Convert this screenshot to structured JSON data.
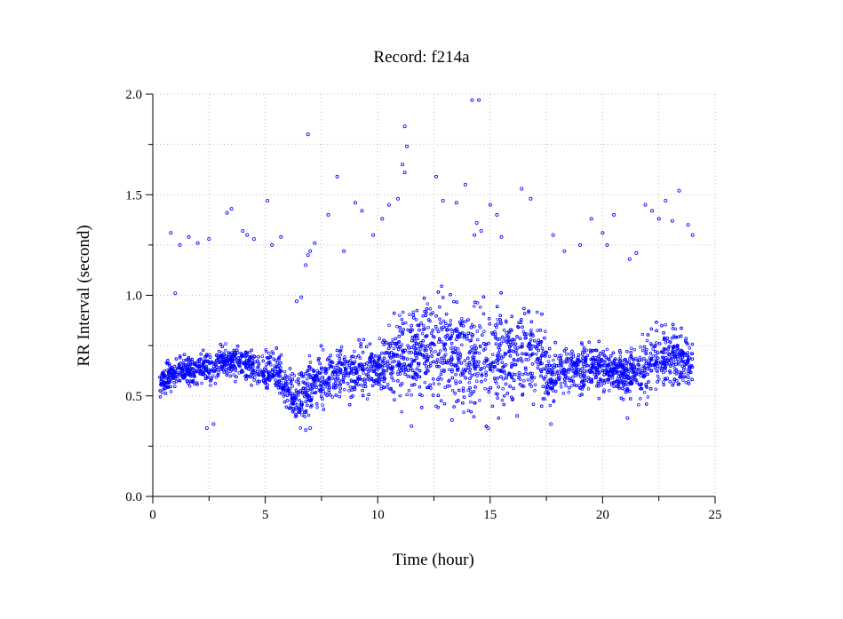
{
  "chart_data": {
    "type": "scatter",
    "title": "Record:  f214a",
    "xlabel": "Time (hour)",
    "ylabel": "RR Interval (second)",
    "xlim": [
      0,
      25
    ],
    "ylim": [
      0.0,
      2.0
    ],
    "xticks": [
      "0",
      "5",
      "10",
      "15",
      "20",
      "25"
    ],
    "yticks": [
      "0.0",
      "0.5",
      "1.0",
      "1.5",
      "2.0"
    ],
    "grid": true,
    "marker_color": "#0000ff",
    "series": [
      {
        "x_range": [
          0.3,
          24.0
        ],
        "baseline_profile": [
          [
            0.3,
            0.56
          ],
          [
            1.0,
            0.62
          ],
          [
            2.0,
            0.63
          ],
          [
            3.0,
            0.66
          ],
          [
            4.0,
            0.68
          ],
          [
            4.8,
            0.62
          ],
          [
            5.5,
            0.63
          ],
          [
            6.0,
            0.52
          ],
          [
            6.5,
            0.48
          ],
          [
            7.0,
            0.55
          ],
          [
            8.0,
            0.6
          ],
          [
            9.0,
            0.62
          ],
          [
            10.0,
            0.64
          ],
          [
            11.0,
            0.7
          ],
          [
            12.0,
            0.72
          ],
          [
            13.0,
            0.72
          ],
          [
            14.0,
            0.7
          ],
          [
            15.0,
            0.7
          ],
          [
            16.0,
            0.7
          ],
          [
            17.2,
            0.7
          ],
          [
            17.7,
            0.58
          ],
          [
            18.5,
            0.65
          ],
          [
            19.5,
            0.64
          ],
          [
            20.5,
            0.62
          ],
          [
            21.0,
            0.6
          ],
          [
            21.5,
            0.64
          ],
          [
            22.0,
            0.66
          ],
          [
            23.0,
            0.7
          ],
          [
            24.0,
            0.65
          ]
        ],
        "spread_profile": [
          [
            0.3,
            0.06
          ],
          [
            5.0,
            0.07
          ],
          [
            6.0,
            0.08
          ],
          [
            7.0,
            0.12
          ],
          [
            8.0,
            0.1
          ],
          [
            10.0,
            0.1
          ],
          [
            11.0,
            0.2
          ],
          [
            12.5,
            0.22
          ],
          [
            17.0,
            0.2
          ],
          [
            17.7,
            0.1
          ],
          [
            19.0,
            0.1
          ],
          [
            21.0,
            0.08
          ],
          [
            22.0,
            0.15
          ],
          [
            24.0,
            0.12
          ]
        ],
        "outliers": [
          [
            0.8,
            1.31
          ],
          [
            1.2,
            1.25
          ],
          [
            1.6,
            1.29
          ],
          [
            2.0,
            1.26
          ],
          [
            2.5,
            1.28
          ],
          [
            3.3,
            1.41
          ],
          [
            3.5,
            1.43
          ],
          [
            4.0,
            1.32
          ],
          [
            4.2,
            1.3
          ],
          [
            4.5,
            1.28
          ],
          [
            5.1,
            1.47
          ],
          [
            5.3,
            1.25
          ],
          [
            5.7,
            1.29
          ],
          [
            6.9,
            1.8
          ],
          [
            6.8,
            1.15
          ],
          [
            6.9,
            1.2
          ],
          [
            7.0,
            1.22
          ],
          [
            7.2,
            1.26
          ],
          [
            7.8,
            1.4
          ],
          [
            8.2,
            1.59
          ],
          [
            8.5,
            1.22
          ],
          [
            9.0,
            1.46
          ],
          [
            9.3,
            1.42
          ],
          [
            9.8,
            1.3
          ],
          [
            10.2,
            1.38
          ],
          [
            10.5,
            1.45
          ],
          [
            10.9,
            1.48
          ],
          [
            11.1,
            1.65
          ],
          [
            11.2,
            1.84
          ],
          [
            11.3,
            1.74
          ],
          [
            11.2,
            1.61
          ],
          [
            12.6,
            1.59
          ],
          [
            12.9,
            1.47
          ],
          [
            13.5,
            1.46
          ],
          [
            13.9,
            1.55
          ],
          [
            14.2,
            1.97
          ],
          [
            14.5,
            1.97
          ],
          [
            14.4,
            1.36
          ],
          [
            14.6,
            1.32
          ],
          [
            14.3,
            1.3
          ],
          [
            15.0,
            1.45
          ],
          [
            15.3,
            1.4
          ],
          [
            15.5,
            1.29
          ],
          [
            16.4,
            1.53
          ],
          [
            16.8,
            1.48
          ],
          [
            17.8,
            1.3
          ],
          [
            18.3,
            1.22
          ],
          [
            19.0,
            1.25
          ],
          [
            19.5,
            1.38
          ],
          [
            20.0,
            1.31
          ],
          [
            20.2,
            1.25
          ],
          [
            20.5,
            1.4
          ],
          [
            21.2,
            1.18
          ],
          [
            21.5,
            1.21
          ],
          [
            21.9,
            1.45
          ],
          [
            22.2,
            1.42
          ],
          [
            22.5,
            1.38
          ],
          [
            22.8,
            1.47
          ],
          [
            23.1,
            1.37
          ],
          [
            23.4,
            1.52
          ],
          [
            23.8,
            1.35
          ],
          [
            24.0,
            1.3
          ],
          [
            1.0,
            1.01
          ],
          [
            6.4,
            0.97
          ],
          [
            6.6,
            0.99
          ],
          [
            2.4,
            0.34
          ],
          [
            2.7,
            0.36
          ],
          [
            6.8,
            0.33
          ],
          [
            7.0,
            0.34
          ],
          [
            11.5,
            0.35
          ],
          [
            13.3,
            0.38
          ],
          [
            14.9,
            0.34
          ],
          [
            16.2,
            0.4
          ],
          [
            17.7,
            0.36
          ],
          [
            21.1,
            0.39
          ]
        ]
      }
    ]
  }
}
